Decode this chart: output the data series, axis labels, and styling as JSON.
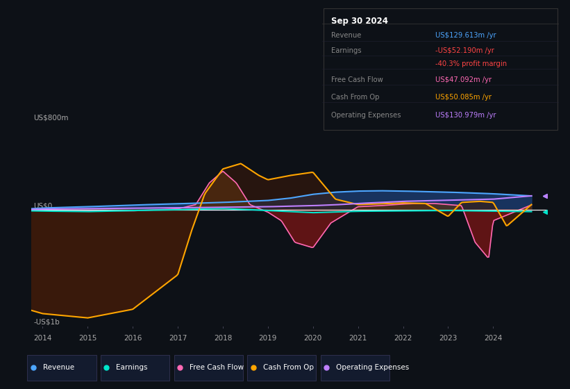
{
  "bg_color": "#0d1117",
  "chart_bg": "#0d1520",
  "title_box_date": "Sep 30 2024",
  "info_rows": [
    {
      "label": "Revenue",
      "value": "US$129.613m /yr",
      "value_color": "#4da6ff"
    },
    {
      "label": "Earnings",
      "value": "-US$52.190m /yr",
      "value_color": "#ff4444"
    },
    {
      "label": "",
      "value": "-40.3% profit margin",
      "value_color": "#ff4444"
    },
    {
      "label": "Free Cash Flow",
      "value": "US$47.092m /yr",
      "value_color": "#ff69b4"
    },
    {
      "label": "Cash From Op",
      "value": "US$50.085m /yr",
      "value_color": "#ffa500"
    },
    {
      "label": "Operating Expenses",
      "value": "US$130.979m /yr",
      "value_color": "#bf80ff"
    }
  ],
  "ylabel_top": "US$800m",
  "ylabel_zero": "US$0",
  "ylabel_bottom": "-US$1b",
  "ylim": [
    -1100,
    900
  ],
  "xlim": [
    2013.75,
    2025.2
  ],
  "legend": [
    {
      "label": "Revenue",
      "color": "#4da6ff"
    },
    {
      "label": "Earnings",
      "color": "#00e5cc"
    },
    {
      "label": "Free Cash Flow",
      "color": "#ff69b4"
    },
    {
      "label": "Cash From Op",
      "color": "#ffa500"
    },
    {
      "label": "Operating Expenses",
      "color": "#bf80ff"
    }
  ],
  "fill_revenue_color": "#1a3a6b",
  "fill_cash_neg_color": "#3d1a0a",
  "fill_fcf_neg_color": "#6b1515",
  "fill_fcf_pos_color": "#5a3010",
  "zero_line_color": "#ffffff",
  "axis_label_color": "#aaaaaa",
  "tick_color": "#aaaaaa",
  "grid_color": "#1e2a3a",
  "box_bg": "#0d1117",
  "box_border": "#333333",
  "legend_box_bg": "#131b2e",
  "legend_box_border": "#333355"
}
